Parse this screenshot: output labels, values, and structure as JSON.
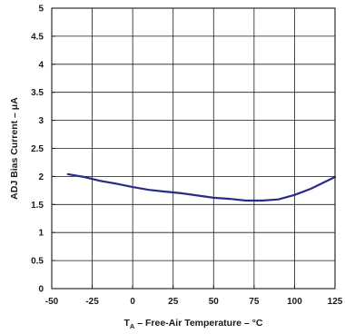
{
  "chart_data": {
    "type": "line",
    "title": "",
    "xlabel": "T – Free-Air Temperature – °C",
    "xlabel_parts": {
      "main": "T",
      "sub": "A",
      "rest": " – Free-Air Temperature – °C"
    },
    "ylabel": "ADJ Bias Current – μA",
    "xlim": [
      -50,
      125
    ],
    "ylim": [
      0,
      5
    ],
    "xticks": [
      -50,
      -25,
      0,
      25,
      50,
      75,
      100,
      125
    ],
    "xtick_labels": [
      "-50",
      "-25",
      "0",
      "25",
      "50",
      "75",
      "100",
      "125"
    ],
    "yticks": [
      0,
      0.5,
      1,
      1.5,
      2,
      2.5,
      3,
      3.5,
      4,
      4.5,
      5
    ],
    "ytick_labels": [
      "0",
      "0.5",
      "1",
      "1.5",
      "2",
      "2.5",
      "3",
      "3.5",
      "4",
      "4.5",
      "5"
    ],
    "grid": true,
    "series": [
      {
        "color": "#2a2a8c",
        "x": [
          -40,
          -30,
          -20,
          -10,
          0,
          10,
          20,
          30,
          40,
          50,
          60,
          70,
          80,
          90,
          100,
          110,
          125
        ],
        "y": [
          2.04,
          1.99,
          1.92,
          1.87,
          1.81,
          1.76,
          1.73,
          1.7,
          1.66,
          1.62,
          1.6,
          1.57,
          1.57,
          1.59,
          1.67,
          1.78,
          1.99
        ]
      }
    ]
  }
}
